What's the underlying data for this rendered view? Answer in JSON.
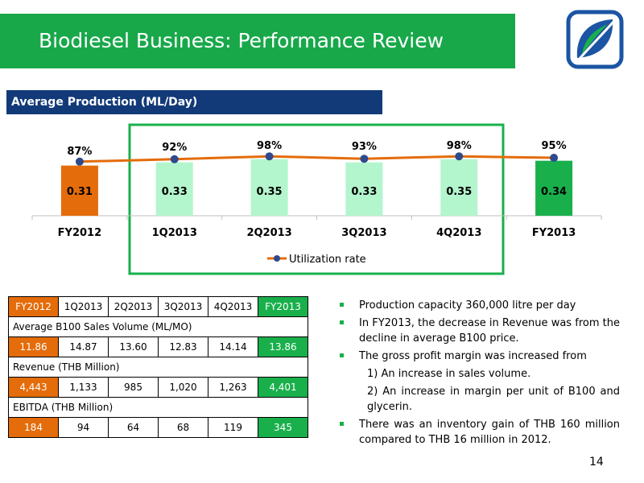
{
  "slide": {
    "title": "Biodiesel Business: Performance Review",
    "section_title": "Average Production (ML/Day)",
    "page_number": "14",
    "logo_icon": "leaf-logo-icon"
  },
  "colors": {
    "title_green": "#18a84a",
    "banner_blue": "#123a79",
    "orange": "#e46c0a",
    "green": "#19b04c",
    "light_green": "#b3f5cd",
    "line_orange": "#e46c0a",
    "marker_blue": "#2e4a8c"
  },
  "chart_data": {
    "type": "bar",
    "categories": [
      "FY2012",
      "1Q2013",
      "2Q2013",
      "3Q2013",
      "4Q2013",
      "FY2013"
    ],
    "series": [
      {
        "values": [
          0.31,
          0.33,
          0.35,
          0.33,
          0.35,
          0.34
        ],
        "colors": [
          "orange",
          "light_green",
          "light_green",
          "light_green",
          "light_green",
          "green"
        ]
      },
      {
        "name": "Utilization rate",
        "type": "line",
        "values": [
          87,
          92,
          98,
          93,
          98,
          95
        ],
        "labels": [
          "87%",
          "92%",
          "98%",
          "93%",
          "98%",
          "95%"
        ]
      }
    ],
    "bar_labels": [
      "0.31",
      "0.33",
      "0.35",
      "0.33",
      "0.35",
      "0.34"
    ],
    "legend": "Utilization rate",
    "legend_position": "bottom",
    "grid": false,
    "highlight_box": "1Q2013 to 4Q2013"
  },
  "table": {
    "headers": [
      "FY2012",
      "1Q2013",
      "2Q2013",
      "3Q2013",
      "4Q2013",
      "FY2013"
    ],
    "sections": [
      {
        "label": "Average B100 Sales Volume (ML/MO)",
        "values": [
          "11.86",
          "14.87",
          "13.60",
          "12.83",
          "14.14",
          "13.86"
        ]
      },
      {
        "label": "Revenue  (THB Million)",
        "values": [
          "4,443",
          "1,133",
          "985",
          "1,020",
          "1,263",
          "4,401"
        ]
      },
      {
        "label": "EBITDA (THB Million)",
        "values": [
          "184",
          "94",
          "64",
          "68",
          "119",
          "345"
        ]
      }
    ]
  },
  "bullets": [
    {
      "type": "bullet",
      "text": "Production capacity 360,000 litre per day"
    },
    {
      "type": "bullet",
      "text": "In FY2013, the decrease in Revenue was from the decline in average B100 price."
    },
    {
      "type": "bullet",
      "text": "The gross profit margin was increased from"
    },
    {
      "type": "sub",
      "text": "1) An increase in sales volume."
    },
    {
      "type": "sub",
      "text": "2) An increase in margin per unit of B100 and glycerin."
    },
    {
      "type": "bullet",
      "text": "There was an inventory gain of THB 160 million compared to THB 16 million in 2012."
    }
  ]
}
